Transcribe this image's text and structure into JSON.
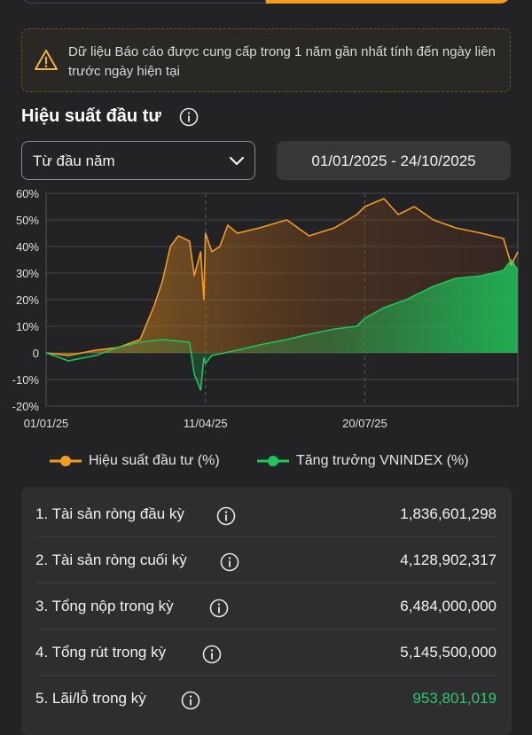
{
  "notice": {
    "text": "Dữ liệu Báo cáo được cung cấp trong 1 năm gần nhất tính đến ngày liên trước ngày hiện tại",
    "icon": "warning-icon"
  },
  "section": {
    "title": "Hiệu suất đầu tư",
    "icon": "info-icon"
  },
  "filter": {
    "period": "Từ đầu năm",
    "date_range": "01/01/2025 - 24/10/2025"
  },
  "legend": {
    "portfolio": "Hiệu suất đầu tư (%)",
    "index": "Tăng trưởng VNINDEX (%)"
  },
  "colors": {
    "accent": "#f39c1f",
    "portfolio": "#f39c1f",
    "index": "#1ec55a",
    "positive": "#2fc96a"
  },
  "chart_data": {
    "type": "line",
    "x_ticks": [
      "01/01/25",
      "11/04/25",
      "20/07/25"
    ],
    "y_ticks": [
      "60%",
      "50%",
      "40%",
      "30%",
      "20%",
      "10%",
      "0",
      "-10%",
      "-20%"
    ],
    "ylim": [
      -20,
      60
    ],
    "x_range": [
      "01/01/25",
      "24/10/25"
    ],
    "grid": true,
    "legend_position": "bottom",
    "series": [
      {
        "name": "Hiệu suất đầu tư (%)",
        "x": [
          "01/01/25",
          "15/01/25",
          "01/02/25",
          "15/02/25",
          "01/03/25",
          "10/03/25",
          "15/03/25",
          "20/03/25",
          "25/03/25",
          "01/04/25",
          "04/04/25",
          "08/04/25",
          "10/04/25",
          "11/04/25",
          "15/04/25",
          "20/04/25",
          "25/04/25",
          "01/05/25",
          "15/05/25",
          "01/06/25",
          "15/06/25",
          "01/07/25",
          "15/07/25",
          "20/07/25",
          "01/08/25",
          "10/08/25",
          "20/08/25",
          "01/09/25",
          "15/09/25",
          "01/10/25",
          "15/10/25",
          "20/10/25",
          "24/10/25"
        ],
        "values": [
          0,
          -1,
          1,
          2,
          5,
          18,
          27,
          40,
          44,
          42,
          29,
          38,
          20,
          45,
          38,
          40,
          48,
          45,
          47,
          50,
          44,
          47,
          52,
          55,
          58,
          52,
          55,
          50,
          47,
          45,
          43,
          33,
          38
        ]
      },
      {
        "name": "Tăng trưởng VNINDEX (%)",
        "x": [
          "01/01/25",
          "15/01/25",
          "01/02/25",
          "15/02/25",
          "01/03/25",
          "15/03/25",
          "01/04/25",
          "04/04/25",
          "08/04/25",
          "10/04/25",
          "11/04/25",
          "15/04/25",
          "01/05/25",
          "15/05/25",
          "01/06/25",
          "15/06/25",
          "01/07/25",
          "15/07/25",
          "20/07/25",
          "01/08/25",
          "15/08/25",
          "01/09/25",
          "15/09/25",
          "01/10/25",
          "15/10/25",
          "20/10/25",
          "24/10/25"
        ],
        "values": [
          0,
          -3,
          -1,
          2,
          4,
          5,
          4,
          -8,
          -14,
          -2,
          -4,
          -1,
          1,
          3,
          5,
          7,
          9,
          10,
          13,
          17,
          20,
          25,
          28,
          29,
          31,
          35,
          31
        ]
      }
    ]
  },
  "summary": {
    "rows": [
      {
        "label": "1. Tài sản ròng đầu kỳ",
        "value": "1,836,601,298"
      },
      {
        "label": "2. Tài sản ròng cuối kỳ",
        "value": "4,128,902,317"
      },
      {
        "label": "3. Tổng nộp trong kỳ",
        "value": "6,484,000,000"
      },
      {
        "label": "4. Tổng rút trong kỳ",
        "value": "5,145,500,000"
      },
      {
        "label": "5. Lãi/lỗ trong kỳ",
        "value": "953,801,019"
      }
    ]
  }
}
